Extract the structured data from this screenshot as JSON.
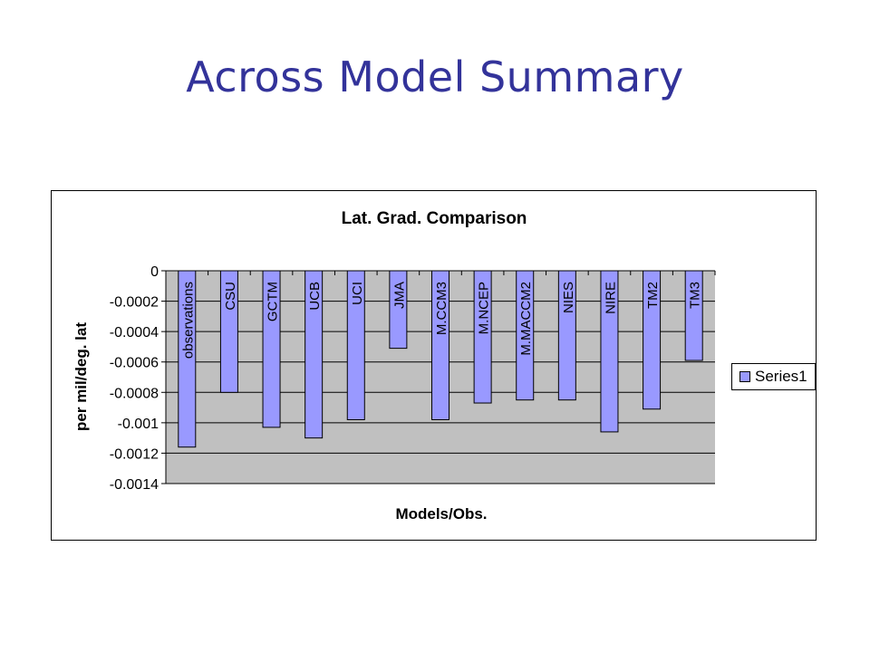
{
  "slide": {
    "title": "Across Model Summary"
  },
  "colors": {
    "title": "#33339a",
    "plot_background": "#c0c0c0",
    "bar_fill": "#9999ff",
    "bar_stroke": "#000000"
  },
  "chart_data": {
    "type": "bar",
    "title": "Lat. Grad. Comparison",
    "xlabel": "Models/Obs.",
    "ylabel": "per mil/deg. lat",
    "ylim": [
      -0.0014,
      0
    ],
    "yticks": [
      "0",
      "-0.0002",
      "-0.0004",
      "-0.0006",
      "-0.0008",
      "-0.001",
      "-0.0012",
      "-0.0014"
    ],
    "ytick_values": [
      0,
      -0.0002,
      -0.0004,
      -0.0006,
      -0.0008,
      -0.001,
      -0.0012,
      -0.0014
    ],
    "grid": true,
    "legend_position": "right",
    "categories": [
      "observations",
      "CSU",
      "GCTM",
      "UCB",
      "UCI",
      "JMA",
      "M.CCM3",
      "M.NCEP",
      "M.MACCM2",
      "NIES",
      "NIRE",
      "TM2",
      "TM3"
    ],
    "series": [
      {
        "name": "Series1",
        "values": [
          -0.00116,
          -0.0008,
          -0.00103,
          -0.0011,
          -0.00098,
          -0.00051,
          -0.00098,
          -0.00087,
          -0.00085,
          -0.00085,
          -0.00106,
          -0.00091,
          -0.00059
        ]
      }
    ]
  }
}
